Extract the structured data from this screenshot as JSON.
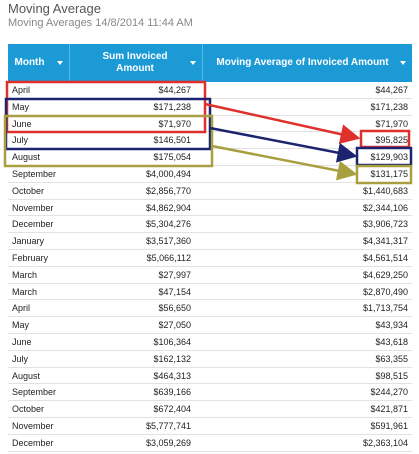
{
  "header": {
    "title": "Moving Average",
    "subtitle": "Moving Averages 14/8/2014 11:44 AM"
  },
  "table": {
    "columns": [
      "Month",
      "Sum Invoiced Amount",
      "Moving Average of Invoiced Amount"
    ],
    "rows": [
      [
        "April",
        "$44,267",
        "$44,267"
      ],
      [
        "May",
        "$171,238",
        "$171,238"
      ],
      [
        "June",
        "$71,970",
        "$71,970"
      ],
      [
        "July",
        "$146,501",
        "$95,825"
      ],
      [
        "August",
        "$175,054",
        "$129,903"
      ],
      [
        "September",
        "$4,000,494",
        "$131,175"
      ],
      [
        "October",
        "$2,856,770",
        "$1,440,683"
      ],
      [
        "November",
        "$4,862,904",
        "$2,344,106"
      ],
      [
        "December",
        "$5,304,276",
        "$3,906,723"
      ],
      [
        "January",
        "$3,517,360",
        "$4,341,317"
      ],
      [
        "February",
        "$5,066,112",
        "$4,561,514"
      ],
      [
        "March",
        "$27,997",
        "$4,629,250"
      ],
      [
        "March",
        "$47,154",
        "$2,870,490"
      ],
      [
        "April",
        "$56,650",
        "$1,713,754"
      ],
      [
        "May",
        "$27,050",
        "$43,934"
      ],
      [
        "June",
        "$106,364",
        "$43,618"
      ],
      [
        "July",
        "$162,132",
        "$63,355"
      ],
      [
        "August",
        "$464,313",
        "$98,515"
      ],
      [
        "September",
        "$639,166",
        "$244,270"
      ],
      [
        "October",
        "$672,404",
        "$421,871"
      ],
      [
        "November",
        "$5,777,741",
        "$591,961"
      ],
      [
        "December",
        "$3,059,269",
        "$2,363,104"
      ]
    ]
  }
}
